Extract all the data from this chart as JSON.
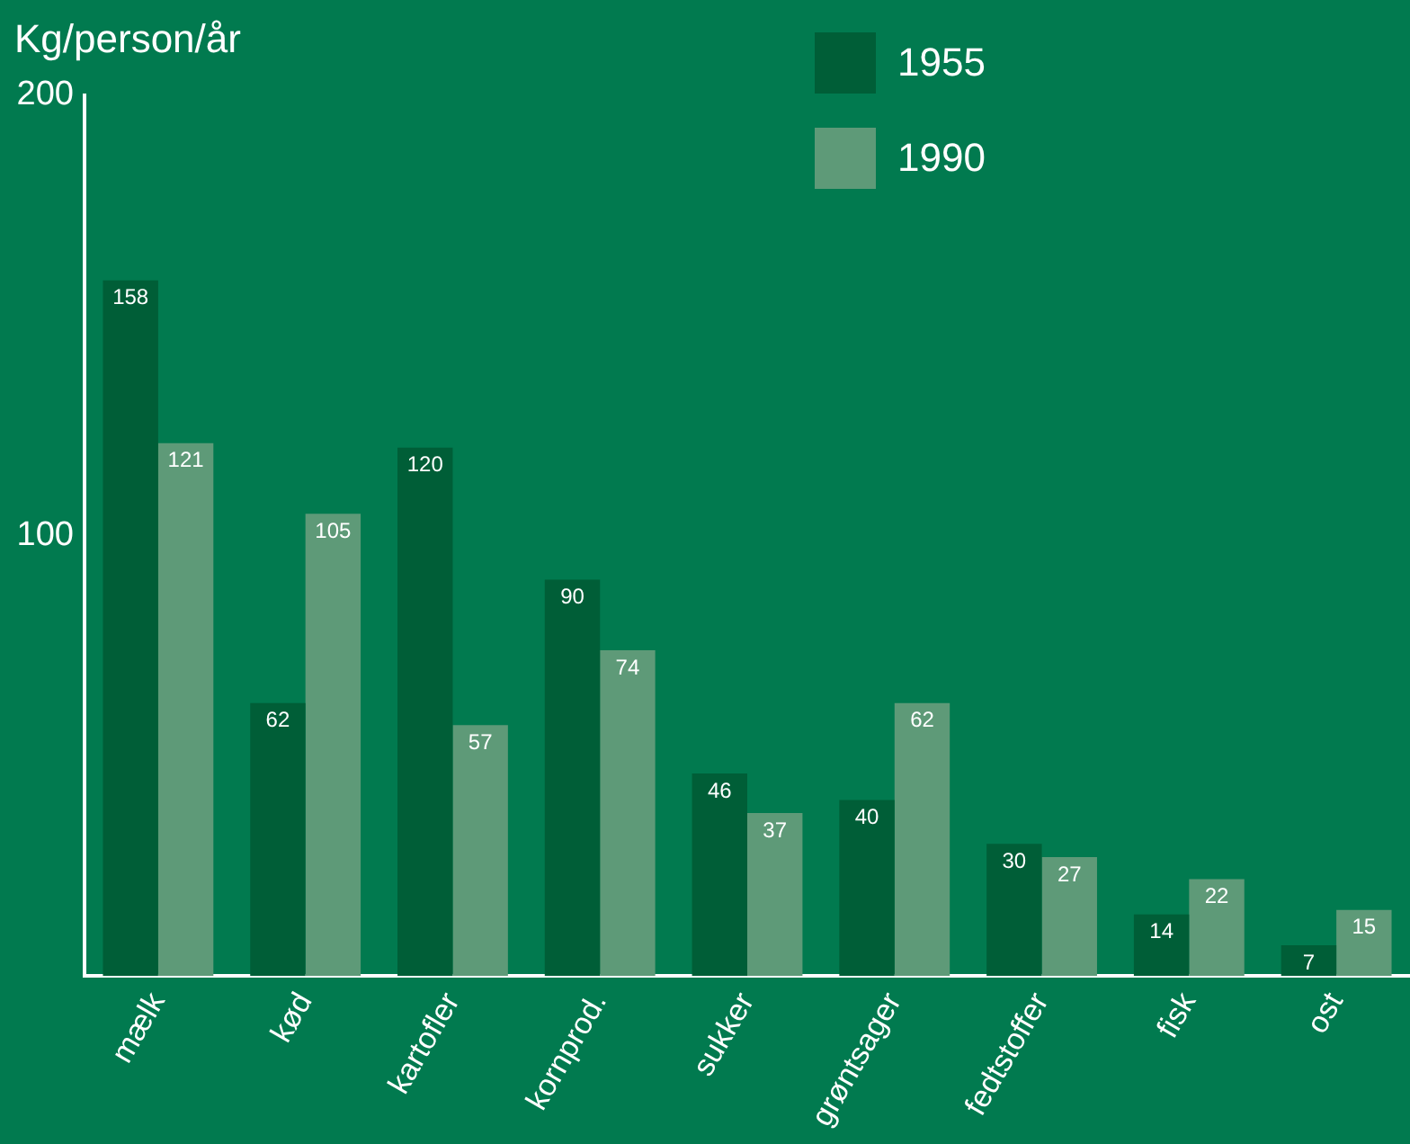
{
  "chart_data": {
    "type": "bar",
    "ylabel": "Kg/person/år",
    "categories": [
      "mælk",
      "kød",
      "kartofler",
      "kornprod.",
      "sukker",
      "grøntsager",
      "fedtstoffer",
      "fisk",
      "ost"
    ],
    "series": [
      {
        "name": "1955",
        "color": "#005e37",
        "values": [
          158,
          62,
          120,
          90,
          46,
          40,
          30,
          14,
          7
        ]
      },
      {
        "name": "1990",
        "color": "#5e9a78",
        "values": [
          121,
          105,
          57,
          74,
          37,
          62,
          27,
          22,
          15
        ]
      }
    ],
    "ylim": [
      0,
      200
    ],
    "yticks": [
      100,
      200
    ],
    "grid": false,
    "legend": "top right",
    "data_labels": true
  }
}
